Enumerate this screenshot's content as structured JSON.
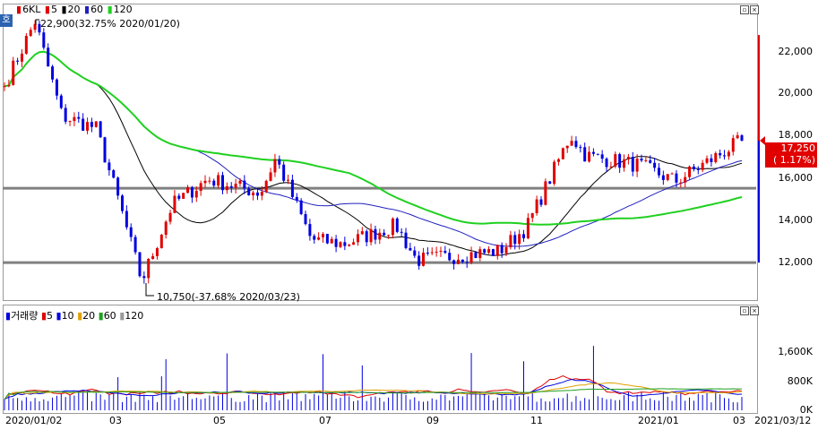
{
  "legend_main": {
    "symbol": "6KL",
    "ma5": "5",
    "ma20": "20",
    "ma60": "60",
    "ma120": "120"
  },
  "legend_volume": {
    "title": "거래량",
    "ma5": "5",
    "ma10": "10",
    "ma20": "20",
    "ma60": "60",
    "ma120": "120"
  },
  "annotations": {
    "high": "22,900(32.75% 2020/01/20)",
    "low": "10,750(-37.68% 2020/03/23)"
  },
  "current_price": {
    "price": "17,250",
    "change": "( 1.17%)"
  },
  "y_axis_price": [
    "22,000",
    "20,000",
    "18,000",
    "16,000",
    "14,000",
    "12,000"
  ],
  "y_axis_volume": [
    "1,600K",
    "800K",
    "0K"
  ],
  "x_axis": [
    "2020/01/02",
    "03",
    "05",
    "07",
    "09",
    "11",
    "2021/01",
    "03",
    "2021/03/12"
  ],
  "corner_button": "호",
  "colors": {
    "up": "#e00000",
    "down": "#0000e0",
    "ma5": "#000000",
    "ma20": "#2020c0",
    "ma60": "#20d020",
    "support": "#808080"
  },
  "chart_data": {
    "type": "candlestick",
    "price_anchors_x_date_y_close": [
      [
        "2020/01/02",
        19600
      ],
      [
        "2020/01/20",
        22400
      ],
      [
        "2020/02/05",
        18300
      ],
      [
        "2020/02/25",
        17800
      ],
      [
        "2020/03/10",
        14500
      ],
      [
        "2020/03/23",
        11200
      ],
      [
        "2020/04/10",
        14500
      ],
      [
        "2020/05/01",
        15600
      ],
      [
        "2020/06/01",
        15000
      ],
      [
        "2020/06/10",
        16500
      ],
      [
        "2020/07/01",
        13000
      ],
      [
        "2020/07/20",
        12800
      ],
      [
        "2020/08/20",
        13600
      ],
      [
        "2020/09/01",
        12100
      ],
      [
        "2020/10/20",
        12500
      ],
      [
        "2020/11/05",
        13500
      ],
      [
        "2020/12/01",
        17500
      ],
      [
        "2020/12/10",
        16600
      ],
      [
        "2021/01/10",
        16200
      ],
      [
        "2021/02/01",
        15500
      ],
      [
        "2021/03/12",
        17250
      ]
    ],
    "support_lines": [
      15200,
      12000
    ],
    "y_range": [
      10500,
      23000
    ],
    "ylim_volume": [
      0,
      2000000
    ]
  }
}
